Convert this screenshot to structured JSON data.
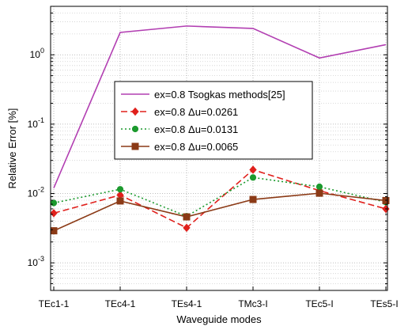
{
  "chart_data": {
    "type": "line",
    "xlabel": "Waveguide modes",
    "ylabel": "Relative Error [%]",
    "yscale": "log",
    "ylim": [
      0.0004,
      5
    ],
    "grid": true,
    "legend_position": "center",
    "categories": [
      "TEc1-1",
      "TEc4-1",
      "TEs4-1",
      "TMc3-I",
      "TEc5-I",
      "TEs5-I"
    ],
    "y_ticks": [
      {
        "value": 0.001,
        "base": "10",
        "exp": "-3"
      },
      {
        "value": 0.01,
        "base": "10",
        "exp": "-2"
      },
      {
        "value": 0.1,
        "base": "10",
        "exp": "-1"
      },
      {
        "value": 1,
        "base": "10",
        "exp": "0"
      }
    ],
    "series": [
      {
        "name": "ex=0.8  Tsogkas methods[25]",
        "color": "#b23fb2",
        "dash": "",
        "marker": "none",
        "values": [
          0.012,
          2.1,
          2.6,
          2.4,
          0.9,
          1.4
        ]
      },
      {
        "name": "ex=0.8  Δu=0.0261",
        "color": "#e0201c",
        "dash": "8,4",
        "marker": "diamond",
        "values": [
          0.0052,
          0.0095,
          0.0032,
          0.022,
          0.011,
          0.006
        ]
      },
      {
        "name": "ex=0.8  Δu=0.0131",
        "color": "#1c9a2e",
        "dash": "2,3",
        "marker": "circle",
        "values": [
          0.0073,
          0.0115,
          0.0047,
          0.017,
          0.0125,
          0.0075
        ]
      },
      {
        "name": "ex=0.8  Δu=0.0065",
        "color": "#8b3a16",
        "dash": "",
        "marker": "square",
        "values": [
          0.0029,
          0.0078,
          0.0046,
          0.0082,
          0.0101,
          0.0079
        ]
      }
    ]
  }
}
